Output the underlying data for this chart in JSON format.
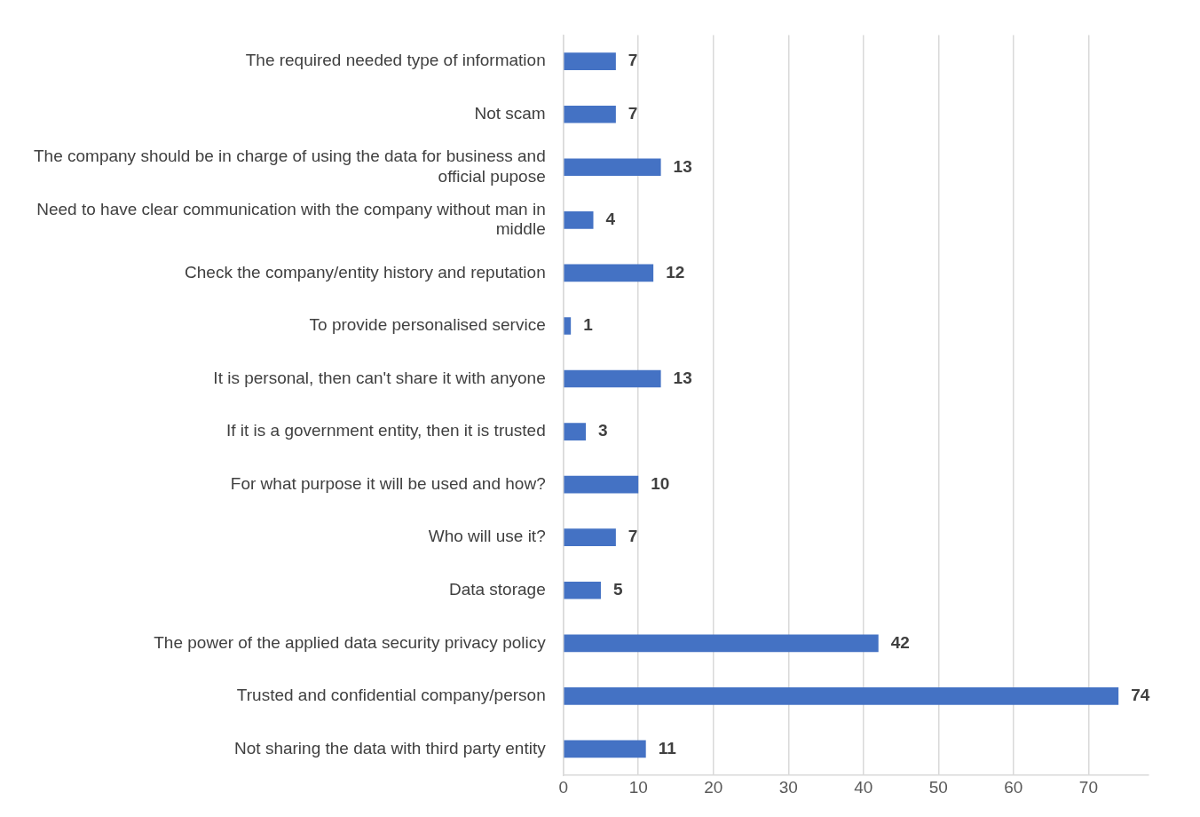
{
  "chart_data": {
    "type": "bar",
    "orientation": "horizontal",
    "categories": [
      "The required needed type of information",
      "Not scam",
      "The company should be in charge of using the data for business and official pupose",
      "Need to have clear communication with the company without man in middle",
      "Check the company/entity history and reputation",
      "To provide personalised service",
      "It is personal, then can't share it with anyone",
      "If it is a government entity, then it is trusted",
      "For what purpose it will be used and how?",
      "Who will use it?",
      "Data storage",
      "The power of the applied data security privacy policy",
      "Trusted and confidential company/person",
      "Not sharing the data with third party entity"
    ],
    "values": [
      7,
      7,
      13,
      4,
      12,
      1,
      13,
      3,
      10,
      7,
      5,
      42,
      74,
      11
    ],
    "color": "#4472c4",
    "xlim": [
      0,
      78
    ],
    "xticks": [
      0,
      10,
      20,
      30,
      40,
      50,
      60,
      70
    ],
    "grid": "x",
    "data_labels": true
  }
}
